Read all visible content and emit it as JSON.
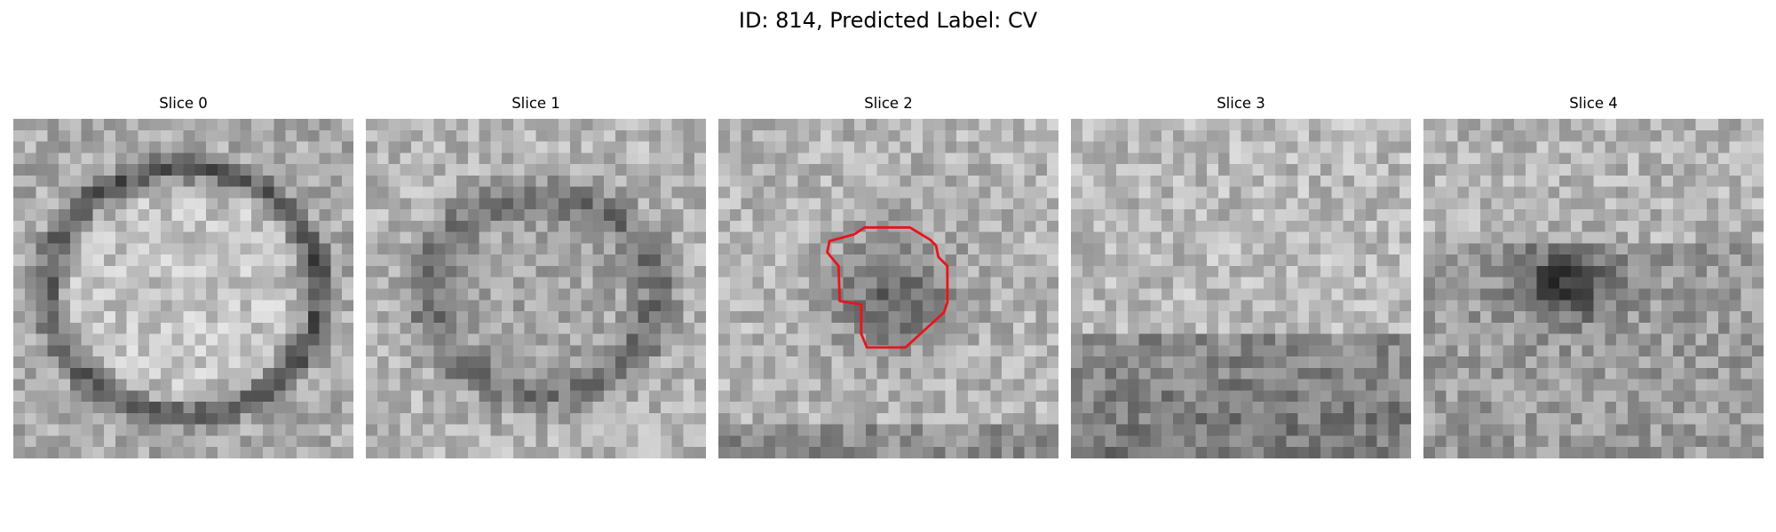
{
  "figure": {
    "title": "ID: 814, Predicted Label: CV"
  },
  "slices": [
    {
      "title": "Slice 0",
      "pattern": "ring",
      "seed": 11
    },
    {
      "title": "Slice 1",
      "pattern": "faint-ring",
      "seed": 23
    },
    {
      "title": "Slice 2",
      "pattern": "central-blob",
      "seed": 37,
      "contour": true
    },
    {
      "title": "Slice 3",
      "pattern": "noise-dark-bottom",
      "seed": 51
    },
    {
      "title": "Slice 4",
      "pattern": "dark-spot",
      "seed": 67
    }
  ],
  "colors": {
    "contour": "#e8141b",
    "background": "#ffffff"
  }
}
